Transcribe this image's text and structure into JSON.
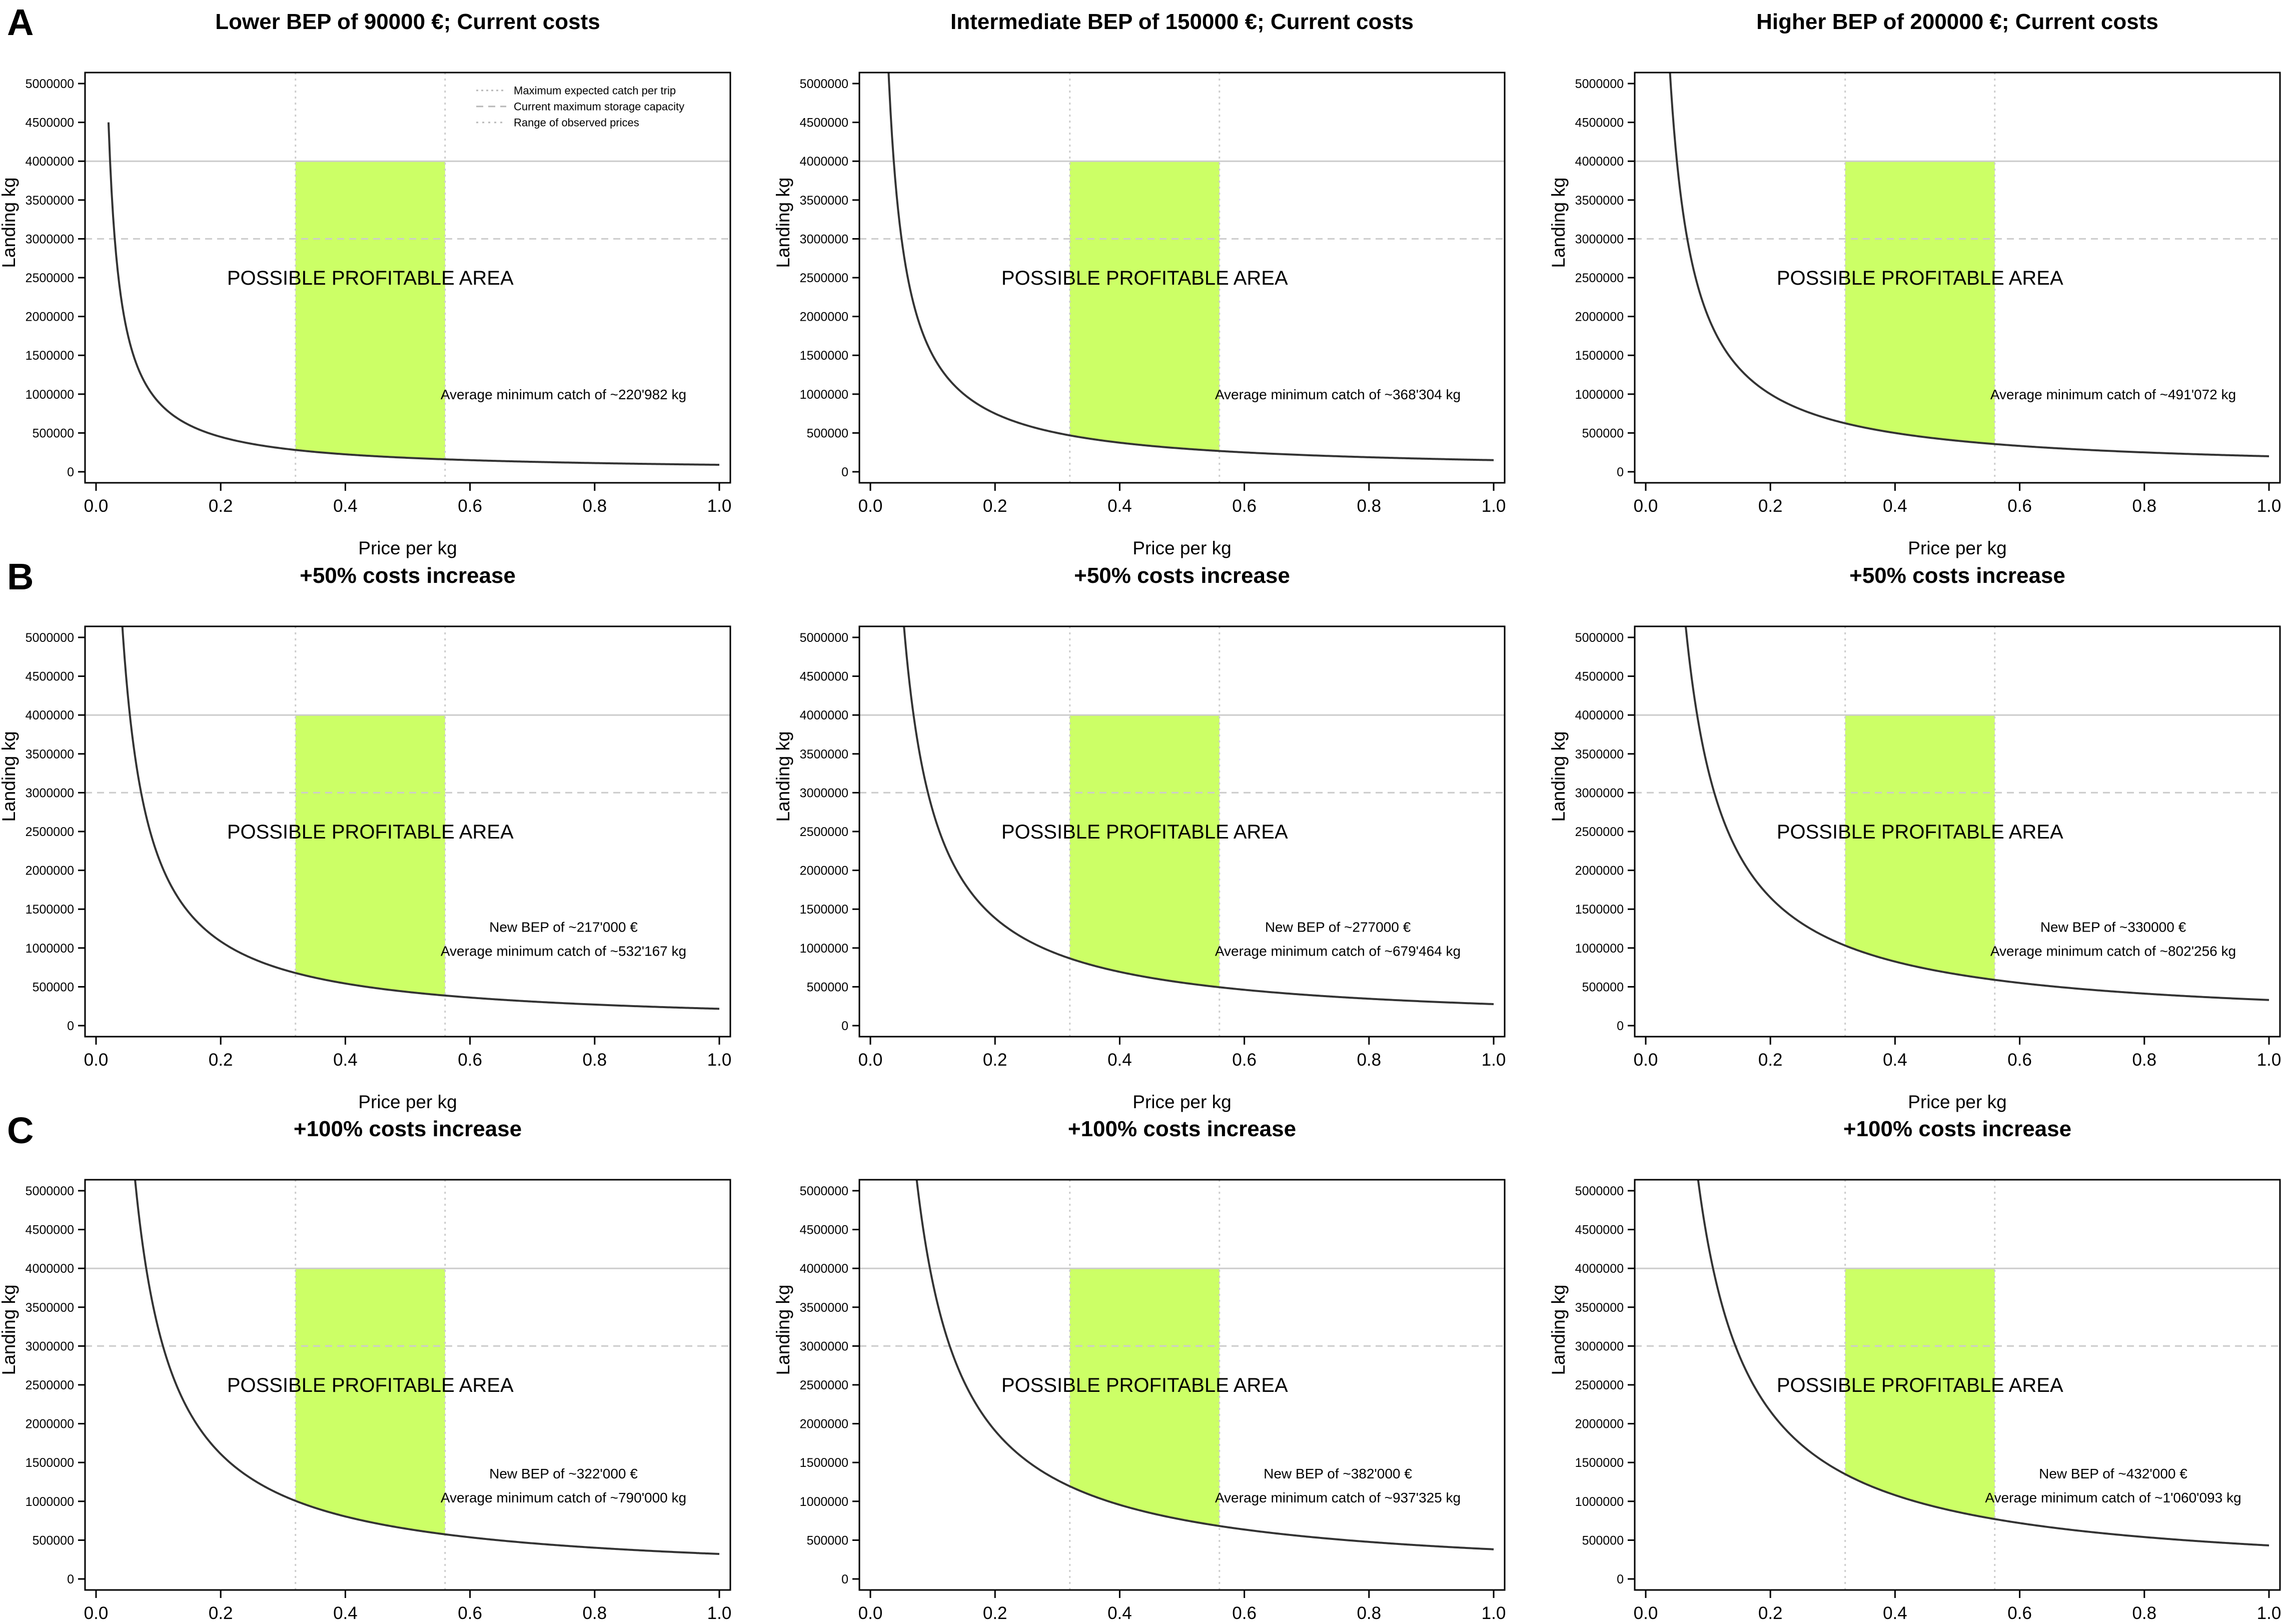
{
  "figure": {
    "rows": [
      {
        "label": "A"
      },
      {
        "label": "B"
      },
      {
        "label": "C"
      }
    ]
  },
  "legend": {
    "items": [
      "Maximum expected catch per trip",
      "Current maximum storage capacity",
      "Range of observed prices"
    ]
  },
  "colors": {
    "profitable_area": "#ccff66",
    "curve": "#333333",
    "axis": "#000000",
    "hline_max_catch": "#cccccc",
    "hline_storage": "#cccccc",
    "vline_price": "#cccccc"
  },
  "chart_data": [
    {
      "type": "line",
      "title": "Lower BEP of 90000 €; Current costs",
      "xlabel": "Price per kg",
      "ylabel": "Landing kg",
      "xlim": [
        0,
        1
      ],
      "ylim": [
        0,
        5000000
      ],
      "x_ticks": [
        "0.0",
        "0.2",
        "0.4",
        "0.6",
        "0.8",
        "1.0"
      ],
      "y_ticks": [
        "0",
        "500000",
        "1000000",
        "1500000",
        "2000000",
        "2500000",
        "3000000",
        "3500000",
        "4000000",
        "4500000",
        "5000000"
      ],
      "curve_k": 90000,
      "curve_x_start": 0.02,
      "max_expected_catch": 4000000,
      "storage_capacity": 3000000,
      "price_range": [
        0.32,
        0.56
      ],
      "area_label": "POSSIBLE PROFITABLE AREA",
      "annotations": [
        "Average minimum catch of ~220'982 kg"
      ],
      "show_legend": true
    },
    {
      "type": "line",
      "title": "Intermediate BEP of 150000 €; Current costs",
      "xlabel": "Price per kg",
      "ylabel": "Landing kg",
      "xlim": [
        0,
        1
      ],
      "ylim": [
        0,
        5000000
      ],
      "x_ticks": [
        "0.0",
        "0.2",
        "0.4",
        "0.6",
        "0.8",
        "1.0"
      ],
      "y_ticks": [
        "0",
        "500000",
        "1000000",
        "1500000",
        "2000000",
        "2500000",
        "3000000",
        "3500000",
        "4000000",
        "4500000",
        "5000000"
      ],
      "curve_k": 150000,
      "max_expected_catch": 4000000,
      "storage_capacity": 3000000,
      "price_range": [
        0.32,
        0.56
      ],
      "area_label": "POSSIBLE PROFITABLE AREA",
      "annotations": [
        "Average minimum catch of ~368'304 kg"
      ],
      "show_legend": false
    },
    {
      "type": "line",
      "title": "Higher BEP of 200000 €; Current costs",
      "xlabel": "Price per kg",
      "ylabel": "Landing kg",
      "xlim": [
        0,
        1
      ],
      "ylim": [
        0,
        5000000
      ],
      "x_ticks": [
        "0.0",
        "0.2",
        "0.4",
        "0.6",
        "0.8",
        "1.0"
      ],
      "y_ticks": [
        "0",
        "500000",
        "1000000",
        "1500000",
        "2000000",
        "2500000",
        "3000000",
        "3500000",
        "4000000",
        "4500000",
        "5000000"
      ],
      "curve_k": 200000,
      "max_expected_catch": 4000000,
      "storage_capacity": 3000000,
      "price_range": [
        0.32,
        0.56
      ],
      "area_label": "POSSIBLE PROFITABLE AREA",
      "annotations": [
        "Average minimum catch of ~491'072 kg"
      ],
      "show_legend": false
    },
    {
      "type": "line",
      "title": "+50% costs increase",
      "xlabel": "Price per kg",
      "ylabel": "Landing kg",
      "xlim": [
        0,
        1
      ],
      "ylim": [
        0,
        5000000
      ],
      "x_ticks": [
        "0.0",
        "0.2",
        "0.4",
        "0.6",
        "0.8",
        "1.0"
      ],
      "y_ticks": [
        "0",
        "500000",
        "1000000",
        "1500000",
        "2000000",
        "2500000",
        "3000000",
        "3500000",
        "4000000",
        "4500000",
        "5000000"
      ],
      "curve_k": 217000,
      "max_expected_catch": 4000000,
      "storage_capacity": 3000000,
      "price_range": [
        0.32,
        0.56
      ],
      "area_label": "POSSIBLE PROFITABLE AREA",
      "annotations": [
        "New BEP of ~217'000 €",
        "Average minimum catch of ~532'167 kg"
      ],
      "show_legend": false
    },
    {
      "type": "line",
      "title": "+50% costs increase",
      "xlabel": "Price per kg",
      "ylabel": "Landing kg",
      "xlim": [
        0,
        1
      ],
      "ylim": [
        0,
        5000000
      ],
      "x_ticks": [
        "0.0",
        "0.2",
        "0.4",
        "0.6",
        "0.8",
        "1.0"
      ],
      "y_ticks": [
        "0",
        "500000",
        "1000000",
        "1500000",
        "2000000",
        "2500000",
        "3000000",
        "3500000",
        "4000000",
        "4500000",
        "5000000"
      ],
      "curve_k": 277000,
      "max_expected_catch": 4000000,
      "storage_capacity": 3000000,
      "price_range": [
        0.32,
        0.56
      ],
      "area_label": "POSSIBLE PROFITABLE AREA",
      "annotations": [
        "New BEP of ~277000 €",
        "Average minimum catch of ~679'464 kg"
      ],
      "show_legend": false
    },
    {
      "type": "line",
      "title": "+50% costs increase",
      "xlabel": "Price per kg",
      "ylabel": "Landing kg",
      "xlim": [
        0,
        1
      ],
      "ylim": [
        0,
        5000000
      ],
      "x_ticks": [
        "0.0",
        "0.2",
        "0.4",
        "0.6",
        "0.8",
        "1.0"
      ],
      "y_ticks": [
        "0",
        "500000",
        "1000000",
        "1500000",
        "2000000",
        "2500000",
        "3000000",
        "3500000",
        "4000000",
        "4500000",
        "5000000"
      ],
      "curve_k": 330000,
      "max_expected_catch": 4000000,
      "storage_capacity": 3000000,
      "price_range": [
        0.32,
        0.56
      ],
      "area_label": "POSSIBLE PROFITABLE AREA",
      "annotations": [
        "New BEP of ~330000 €",
        "Average minimum catch of ~802'256 kg"
      ],
      "show_legend": false
    },
    {
      "type": "line",
      "title": "+100% costs increase",
      "xlabel": "Price per kg",
      "ylabel": "Landing kg",
      "xlim": [
        0,
        1
      ],
      "ylim": [
        0,
        5000000
      ],
      "x_ticks": [
        "0.0",
        "0.2",
        "0.4",
        "0.6",
        "0.8",
        "1.0"
      ],
      "y_ticks": [
        "0",
        "500000",
        "1000000",
        "1500000",
        "2000000",
        "2500000",
        "3000000",
        "3500000",
        "4000000",
        "4500000",
        "5000000"
      ],
      "curve_k": 322000,
      "max_expected_catch": 4000000,
      "storage_capacity": 3000000,
      "price_range": [
        0.32,
        0.56
      ],
      "area_label": "POSSIBLE PROFITABLE AREA",
      "annotations": [
        "New BEP of ~322'000 €",
        "Average minimum catch of ~790'000 kg"
      ],
      "show_legend": false
    },
    {
      "type": "line",
      "title": "+100% costs increase",
      "xlabel": "Price per kg",
      "ylabel": "Landing kg",
      "xlim": [
        0,
        1
      ],
      "ylim": [
        0,
        5000000
      ],
      "x_ticks": [
        "0.0",
        "0.2",
        "0.4",
        "0.6",
        "0.8",
        "1.0"
      ],
      "y_ticks": [
        "0",
        "500000",
        "1000000",
        "1500000",
        "2000000",
        "2500000",
        "3000000",
        "3500000",
        "4000000",
        "4500000",
        "5000000"
      ],
      "curve_k": 382000,
      "max_expected_catch": 4000000,
      "storage_capacity": 3000000,
      "price_range": [
        0.32,
        0.56
      ],
      "area_label": "POSSIBLE PROFITABLE AREA",
      "annotations": [
        "New BEP of ~382'000 €",
        "Average minimum catch of ~937'325 kg"
      ],
      "show_legend": false
    },
    {
      "type": "line",
      "title": "+100% costs increase",
      "xlabel": "Price per kg",
      "ylabel": "Landing kg",
      "xlim": [
        0,
        1
      ],
      "ylim": [
        0,
        5000000
      ],
      "x_ticks": [
        "0.0",
        "0.2",
        "0.4",
        "0.6",
        "0.8",
        "1.0"
      ],
      "y_ticks": [
        "0",
        "500000",
        "1000000",
        "1500000",
        "2000000",
        "2500000",
        "3000000",
        "3500000",
        "4000000",
        "4500000",
        "5000000"
      ],
      "curve_k": 432000,
      "max_expected_catch": 4000000,
      "storage_capacity": 3000000,
      "price_range": [
        0.32,
        0.56
      ],
      "area_label": "POSSIBLE PROFITABLE AREA",
      "annotations": [
        "New BEP of ~432'000 €",
        "Average minimum catch of ~1'060'093 kg"
      ],
      "show_legend": false
    }
  ]
}
